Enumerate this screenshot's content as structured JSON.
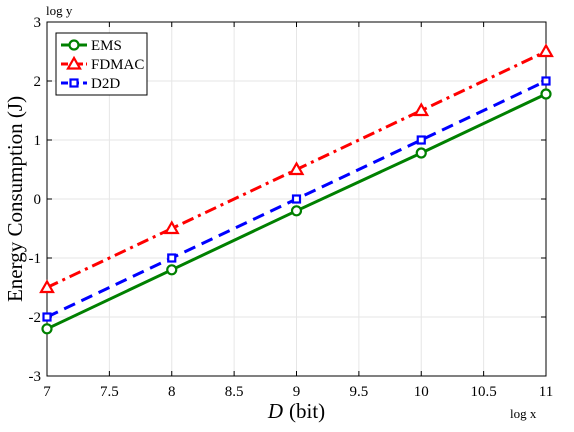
{
  "chart_data": {
    "type": "line",
    "xlabel_var": "D",
    "xlabel_unit": "(bit)",
    "ylabel": "Energy Consumption (J)",
    "x_corner_label": "log x",
    "y_corner_label": "log y",
    "xlim": [
      7,
      11
    ],
    "ylim": [
      -3,
      3
    ],
    "x_ticks": [
      "7",
      "7.5",
      "8",
      "8.5",
      "9",
      "9.5",
      "10",
      "10.5",
      "11"
    ],
    "y_ticks": [
      "-3",
      "-2",
      "-1",
      "0",
      "1",
      "2",
      "3"
    ],
    "grid": true,
    "legend_position": "top-left",
    "x": [
      7,
      8,
      9,
      10,
      11
    ],
    "series": [
      {
        "name": "EMS",
        "values": [
          -2.2,
          -1.2,
          -0.2,
          0.78,
          1.78
        ],
        "color": "#008000",
        "dash": "solid",
        "marker": "circle"
      },
      {
        "name": "FDMAC",
        "values": [
          -1.5,
          -0.5,
          0.5,
          1.5,
          2.5
        ],
        "color": "#ff0000",
        "dash": "dashdot",
        "marker": "triangle"
      },
      {
        "name": "D2D",
        "values": [
          -2.0,
          -1.0,
          0.0,
          1.0,
          2.0
        ],
        "color": "#0000ff",
        "dash": "dashed",
        "marker": "square"
      }
    ]
  }
}
